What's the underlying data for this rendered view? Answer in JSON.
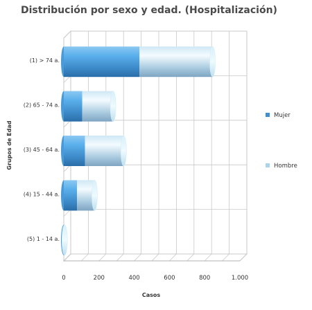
{
  "chart_data": {
    "type": "bar",
    "orientation": "horizontal",
    "stacked": true,
    "style": "3d-cylinder",
    "title": "Distribución por sexo y edad. (Hospitalización)",
    "xlabel": "Casos",
    "ylabel": "Grupos de Edad",
    "xlim": [
      0,
      1000
    ],
    "xticks": [
      "0",
      "200",
      "400",
      "600",
      "800",
      "1.000"
    ],
    "grid": true,
    "legend_position": "right",
    "categories": [
      "(1) > 74 a.",
      "(2) 65 - 74 a.",
      "(3) 45 - 64 a.",
      "(4) 15 - 44 a.",
      "(5) 1 - 14 a."
    ],
    "series": [
      {
        "name": "Mujer",
        "values": [
          430,
          105,
          120,
          75,
          2
        ]
      },
      {
        "name": "Hombre",
        "values": [
          415,
          175,
          220,
          100,
          3
        ]
      }
    ],
    "colors": {
      "Mujer": "#3d8fd1",
      "Hombre": "#a9d4ea",
      "grid": "#c8c8c8"
    }
  }
}
